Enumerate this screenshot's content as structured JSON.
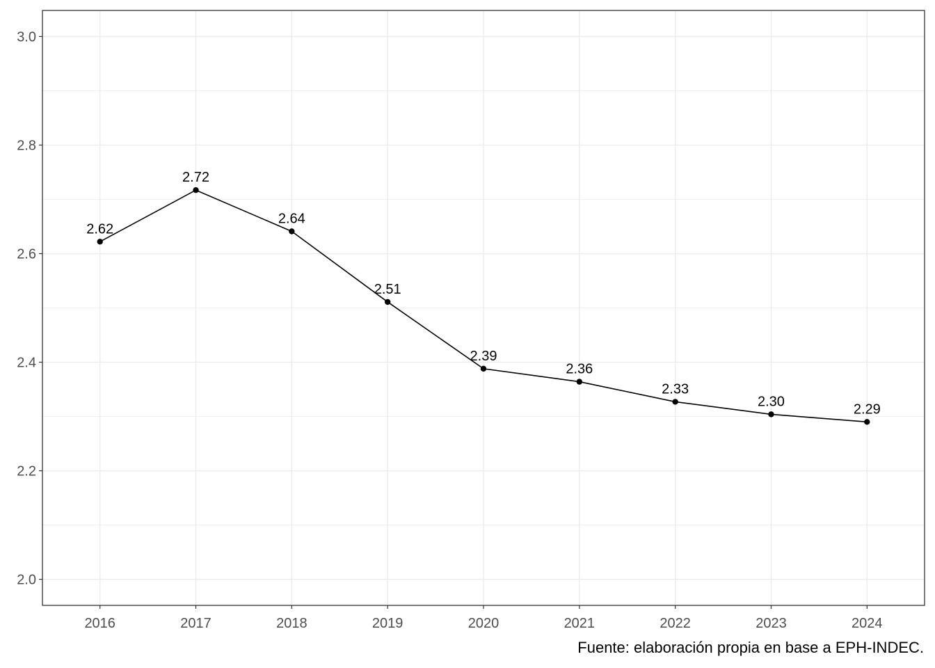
{
  "chart_data": {
    "type": "line",
    "x": [
      "2016",
      "2017",
      "2018",
      "2019",
      "2020",
      "2021",
      "2022",
      "2023",
      "2024"
    ],
    "values": [
      2.622,
      2.717,
      2.641,
      2.511,
      2.388,
      2.364,
      2.327,
      2.304,
      2.29
    ],
    "data_labels": [
      "2.62",
      "2.72",
      "2.64",
      "2.51",
      "2.39",
      "2.36",
      "2.33",
      "2.30",
      "2.29"
    ],
    "ylim": [
      1.952,
      3.048
    ],
    "yticks": [
      2.0,
      2.2,
      2.4,
      2.6,
      2.8,
      3.0
    ],
    "ytick_labels": [
      "2.0",
      "2.2",
      "2.4",
      "2.6",
      "2.8",
      "3.0"
    ],
    "title": "",
    "xlabel": "",
    "ylabel": "",
    "grid": true,
    "caption": "Fuente: elaboración propia en base a EPH-INDEC.",
    "colors": {
      "line": "#000000",
      "point": "#000000",
      "grid": "#ebebeb",
      "panel_border": "#333333"
    }
  }
}
